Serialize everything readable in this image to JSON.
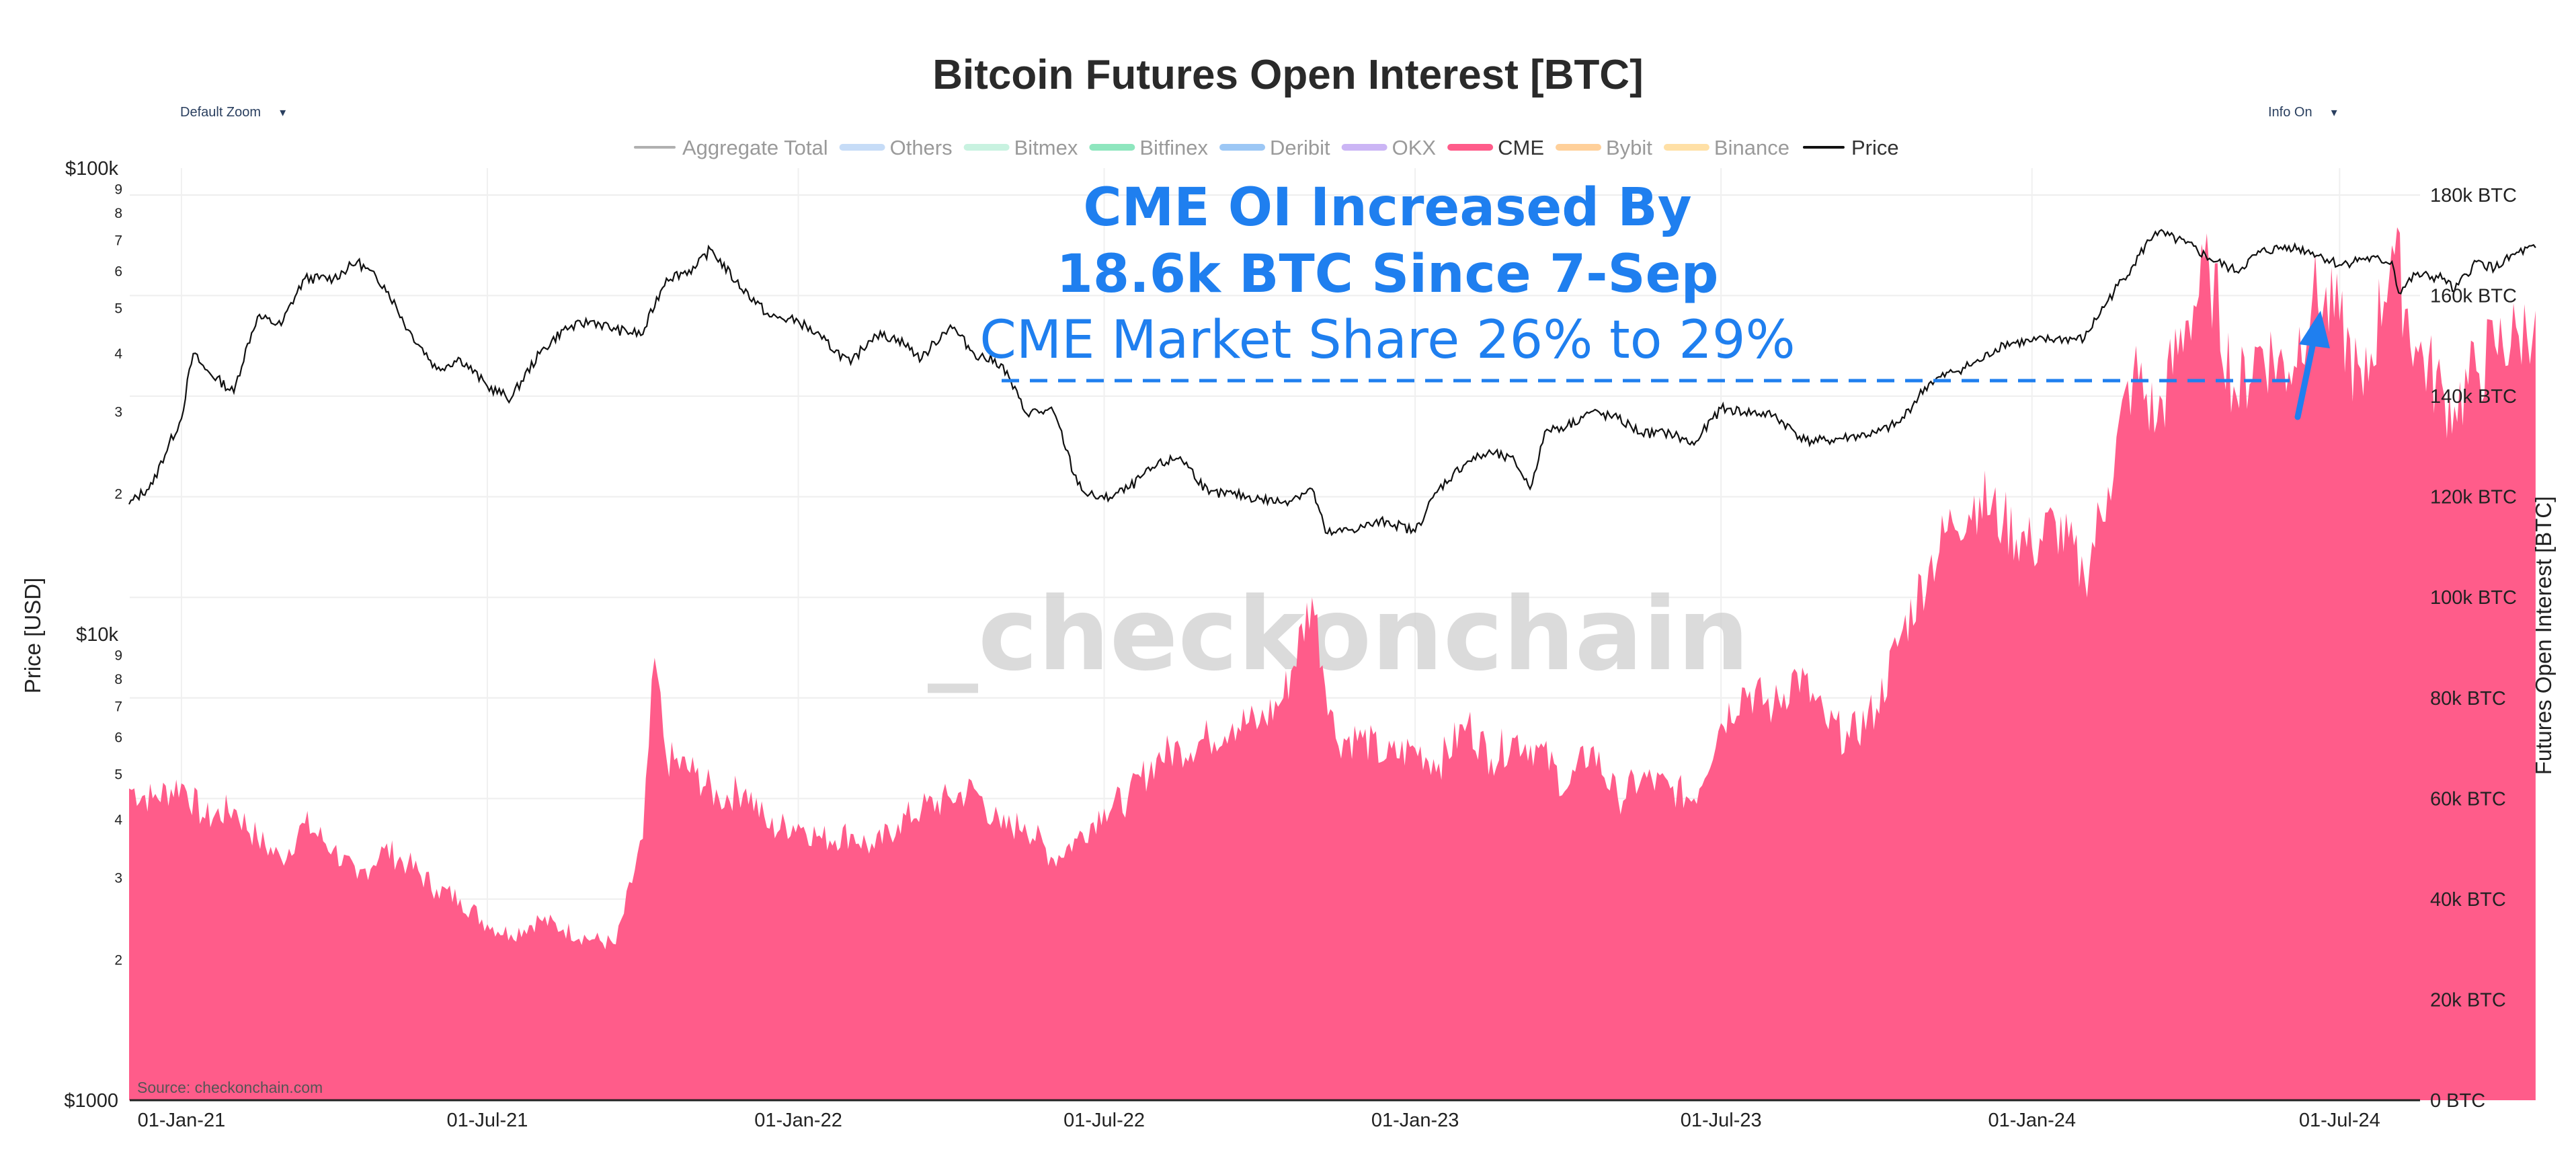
{
  "controls": {
    "zoom_label": "Default Zoom",
    "info_label": "Info On",
    "arrow": "▾"
  },
  "annotations": {
    "line1": "CME OI Increased By",
    "line2": "18.6k BTC Since 7-Sep",
    "line3": "CME Market Share 26% to 29%",
    "watermark": "_checkonchain",
    "source": "Source: checkonchain.com"
  },
  "colors": {
    "cme": "#ff5c8a",
    "price": "#111111",
    "annotation": "#1f7fef"
  },
  "chart_data": {
    "type": "area",
    "title": "Bitcoin Futures Open Interest [BTC]",
    "ylabel_left": "Price [USD]",
    "ylabel_right": "Futures Open Interest [BTC]",
    "y_left_scale": "log",
    "y_left_range": [
      1000,
      100000
    ],
    "y_left_ticks": [
      "$1000",
      "$10k",
      "$100k"
    ],
    "y_left_minor_ticks": [
      "2",
      "3",
      "4",
      "5",
      "6",
      "7",
      "8",
      "9"
    ],
    "y_right_range": [
      0,
      180000
    ],
    "y_right_ticks": [
      "0 BTC",
      "20k BTC",
      "40k BTC",
      "60k BTC",
      "80k BTC",
      "100k BTC",
      "120k BTC",
      "140k BTC",
      "160k BTC",
      "180k BTC"
    ],
    "x_range": [
      "2020-12-01",
      "2024-10-31"
    ],
    "x_ticks": [
      "01-Jan-21",
      "01-Jul-21",
      "01-Jan-22",
      "01-Jul-22",
      "01-Jan-23",
      "01-Jul-23",
      "01-Jan-24",
      "01-Jul-24"
    ],
    "grid": true,
    "legend": {
      "placement": "top",
      "items": [
        {
          "name": "Aggregate Total",
          "color": "#b0b0b0",
          "active": false
        },
        {
          "name": "Others",
          "color": "#c6dcf7",
          "active": false
        },
        {
          "name": "Bitmex",
          "color": "#c8f2e0",
          "active": false
        },
        {
          "name": "Bitfinex",
          "color": "#8ee6be",
          "active": false
        },
        {
          "name": "Deribit",
          "color": "#9cc7f5",
          "active": false
        },
        {
          "name": "OKX",
          "color": "#cbb5f5",
          "active": false
        },
        {
          "name": "CME",
          "color": "#ff5c8a",
          "active": true
        },
        {
          "name": "Bybit",
          "color": "#ffd09a",
          "active": false
        },
        {
          "name": "Binance",
          "color": "#ffe0a6",
          "active": false
        },
        {
          "name": "Price",
          "color": "#111111",
          "active": true
        }
      ]
    },
    "series": [
      {
        "name": "CME",
        "dates": [
          "2020-12-01",
          "2020-12-15",
          "2021-01-01",
          "2021-01-15",
          "2021-02-01",
          "2021-02-15",
          "2021-03-01",
          "2021-03-15",
          "2021-04-01",
          "2021-04-15",
          "2021-05-01",
          "2021-05-15",
          "2021-06-01",
          "2021-06-15",
          "2021-07-01",
          "2021-07-15",
          "2021-08-01",
          "2021-08-15",
          "2021-09-01",
          "2021-09-15",
          "2021-10-01",
          "2021-10-08",
          "2021-10-15",
          "2021-11-01",
          "2021-11-15",
          "2021-12-01",
          "2021-12-15",
          "2022-01-01",
          "2022-01-15",
          "2022-02-01",
          "2022-02-15",
          "2022-03-01",
          "2022-03-15",
          "2022-04-01",
          "2022-04-15",
          "2022-05-01",
          "2022-05-15",
          "2022-06-01",
          "2022-06-15",
          "2022-07-01",
          "2022-07-15",
          "2022-08-01",
          "2022-08-15",
          "2022-09-01",
          "2022-09-15",
          "2022-10-01",
          "2022-10-15",
          "2022-11-01",
          "2022-11-15",
          "2022-12-01",
          "2022-12-15",
          "2023-01-01",
          "2023-01-15",
          "2023-02-01",
          "2023-02-15",
          "2023-03-01",
          "2023-03-15",
          "2023-04-01",
          "2023-04-15",
          "2023-05-01",
          "2023-05-15",
          "2023-06-01",
          "2023-06-15",
          "2023-07-01",
          "2023-07-15",
          "2023-08-01",
          "2023-08-15",
          "2023-09-01",
          "2023-09-15",
          "2023-10-01",
          "2023-10-15",
          "2023-11-01",
          "2023-11-15",
          "2023-12-01",
          "2023-12-15",
          "2024-01-01",
          "2024-01-15",
          "2024-02-01",
          "2024-02-15",
          "2024-03-01",
          "2024-03-15",
          "2024-04-01",
          "2024-04-15",
          "2024-05-01",
          "2024-05-15",
          "2024-06-01",
          "2024-06-15",
          "2024-07-01",
          "2024-07-15",
          "2024-08-01",
          "2024-08-15",
          "2024-09-01",
          "2024-09-07",
          "2024-09-20",
          "2024-10-01",
          "2024-10-15",
          "2024-10-25"
        ],
        "values": [
          62000,
          60000,
          63000,
          56000,
          58000,
          52000,
          48000,
          55000,
          50000,
          44000,
          50000,
          47000,
          42000,
          40000,
          35000,
          33000,
          36000,
          34000,
          32000,
          31000,
          52000,
          88000,
          68000,
          65000,
          60000,
          62000,
          54000,
          55000,
          52000,
          53000,
          50000,
          55000,
          58000,
          60000,
          62000,
          54000,
          55000,
          48000,
          52000,
          58000,
          60000,
          68000,
          70000,
          72000,
          75000,
          75000,
          80000,
          100000,
          72000,
          72000,
          68000,
          70000,
          67000,
          75000,
          68000,
          72000,
          70000,
          62000,
          70000,
          60000,
          64000,
          62000,
          60000,
          75000,
          82000,
          78000,
          85000,
          75000,
          72000,
          78000,
          92000,
          106000,
          115000,
          120000,
          115000,
          110000,
          115000,
          104000,
          122000,
          145000,
          135000,
          155000,
          165000,
          140000,
          150000,
          145000,
          160000,
          155000,
          140000,
          170000,
          150000,
          140000,
          138000,
          145000,
          150000,
          152000,
          157000
        ]
      },
      {
        "name": "Price",
        "dates": [
          "2020-12-01",
          "2020-12-15",
          "2021-01-01",
          "2021-01-08",
          "2021-01-15",
          "2021-02-01",
          "2021-02-15",
          "2021-03-01",
          "2021-03-15",
          "2021-04-01",
          "2021-04-15",
          "2021-05-01",
          "2021-05-15",
          "2021-06-01",
          "2021-06-15",
          "2021-07-01",
          "2021-07-15",
          "2021-08-01",
          "2021-08-15",
          "2021-09-01",
          "2021-09-15",
          "2021-10-01",
          "2021-10-15",
          "2021-11-01",
          "2021-11-10",
          "2021-11-25",
          "2021-12-15",
          "2022-01-01",
          "2022-01-15",
          "2022-02-01",
          "2022-02-15",
          "2022-03-01",
          "2022-03-15",
          "2022-04-01",
          "2022-04-15",
          "2022-05-01",
          "2022-05-15",
          "2022-06-01",
          "2022-06-13",
          "2022-06-20",
          "2022-07-01",
          "2022-07-15",
          "2022-08-01",
          "2022-08-15",
          "2022-09-01",
          "2022-09-15",
          "2022-10-01",
          "2022-10-15",
          "2022-11-01",
          "2022-11-09",
          "2022-11-15",
          "2022-12-01",
          "2022-12-15",
          "2023-01-01",
          "2023-01-15",
          "2023-02-01",
          "2023-02-15",
          "2023-03-01",
          "2023-03-10",
          "2023-03-20",
          "2023-04-01",
          "2023-04-15",
          "2023-05-01",
          "2023-05-15",
          "2023-06-01",
          "2023-06-15",
          "2023-07-01",
          "2023-07-15",
          "2023-08-01",
          "2023-08-20",
          "2023-09-01",
          "2023-09-15",
          "2023-10-01",
          "2023-10-15",
          "2023-11-01",
          "2023-11-15",
          "2023-12-01",
          "2023-12-15",
          "2024-01-01",
          "2024-01-15",
          "2024-02-01",
          "2024-02-15",
          "2024-03-01",
          "2024-03-14",
          "2024-04-01",
          "2024-04-15",
          "2024-05-01",
          "2024-05-15",
          "2024-06-01",
          "2024-06-15",
          "2024-07-01",
          "2024-07-15",
          "2024-08-01",
          "2024-08-05",
          "2024-08-15",
          "2024-09-01",
          "2024-09-07",
          "2024-09-20",
          "2024-10-01",
          "2024-10-15",
          "2024-10-25"
        ],
        "values": [
          19000,
          21000,
          29000,
          40000,
          37000,
          33000,
          48000,
          46000,
          58000,
          58000,
          63000,
          56000,
          45000,
          37000,
          39000,
          34000,
          32000,
          40000,
          45000,
          47000,
          45000,
          44000,
          58000,
          61000,
          67000,
          57000,
          48000,
          47000,
          43000,
          38000,
          44000,
          43000,
          39000,
          46000,
          40000,
          38000,
          30000,
          30000,
          22000,
          20000,
          19500,
          20500,
          23000,
          24000,
          20000,
          20000,
          19500,
          19200,
          20500,
          16500,
          16500,
          17000,
          17500,
          16600,
          20500,
          23500,
          24500,
          23500,
          20500,
          27500,
          28000,
          30000,
          29000,
          27000,
          27000,
          25500,
          30500,
          30000,
          29500,
          26000,
          26000,
          26500,
          27000,
          28500,
          34500,
          36500,
          38500,
          42000,
          42500,
          43000,
          43000,
          52000,
          62000,
          73000,
          69000,
          64000,
          60000,
          66000,
          68000,
          66000,
          62000,
          64000,
          63000,
          54000,
          59000,
          58000,
          54500,
          63000,
          61000,
          66000,
          67500
        ]
      }
    ]
  }
}
